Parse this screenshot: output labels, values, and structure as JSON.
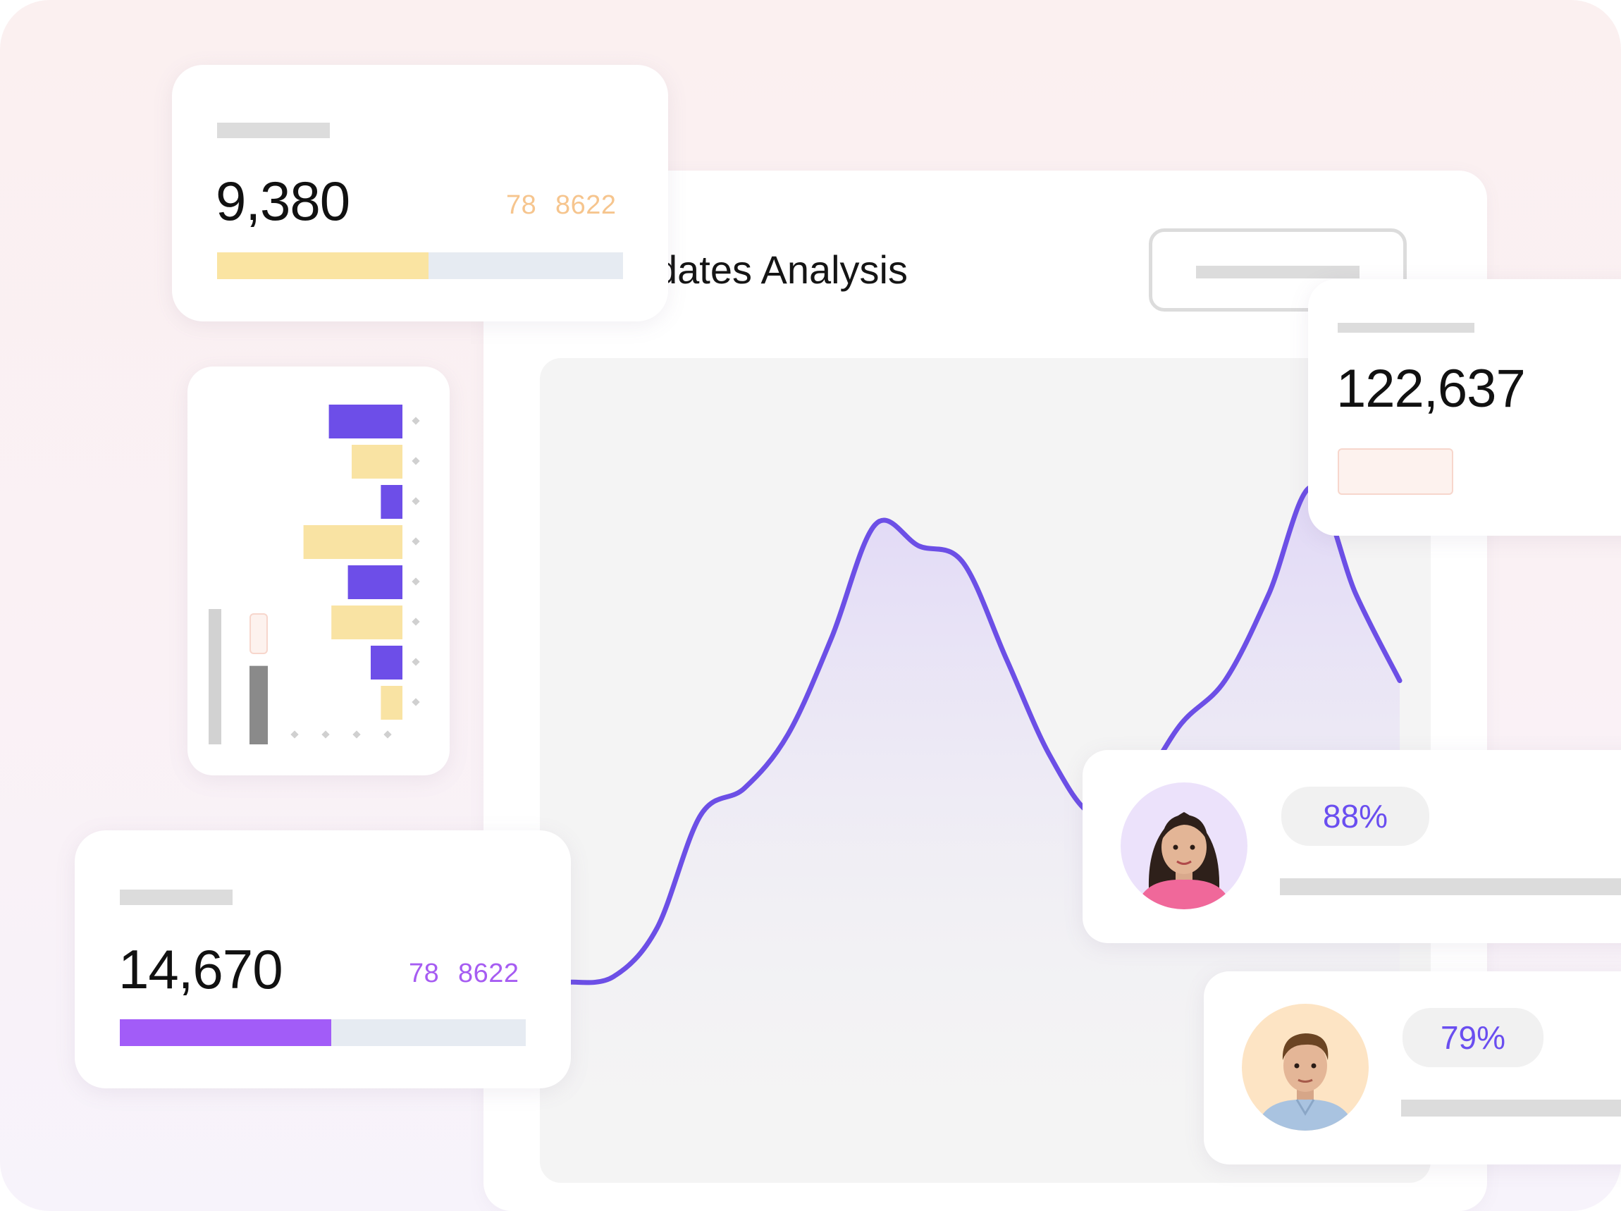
{
  "colors": {
    "accent_purple": "#6c4fe6",
    "bar_purple": "#6d4ee8",
    "bar_yellow": "#f9e3a3",
    "progress_yellow": "#fae4a2",
    "progress_violet": "#a25cf8",
    "sub_orange": "#f6c58e",
    "sub_violet": "#a65cf2",
    "track": "#e6ebf2",
    "badge_peach": "#fdf2ee"
  },
  "main_panel": {
    "title_visible": "dates Analysis"
  },
  "stat_cards": {
    "top": {
      "value": "9,380",
      "sub_a": "78",
      "sub_b": "8622",
      "progress": 0.52
    },
    "bottom": {
      "value": "14,670",
      "sub_a": "78",
      "sub_b": "8622",
      "progress": 0.52
    },
    "right": {
      "value": "122,637"
    }
  },
  "people": [
    {
      "percent": "88%",
      "avatar_icon": "woman-avatar-icon"
    },
    {
      "percent": "79%",
      "avatar_icon": "man-avatar-icon"
    }
  ],
  "bar_widget": {
    "bars": [
      {
        "value": 0.58,
        "color": "purple"
      },
      {
        "value": 0.4,
        "color": "yellow"
      },
      {
        "value": 0.17,
        "color": "purple"
      },
      {
        "value": 0.78,
        "color": "yellow"
      },
      {
        "value": 0.43,
        "color": "purple"
      },
      {
        "value": 0.56,
        "color": "yellow"
      },
      {
        "value": 0.25,
        "color": "purple"
      },
      {
        "value": 0.17,
        "color": "yellow"
      }
    ],
    "columns": [
      {
        "value": 1.0,
        "color": "light-gray"
      },
      {
        "value": 0.58,
        "color": "dark-gray"
      }
    ]
  },
  "chart_data": {
    "type": "area",
    "title": "",
    "xlabel": "",
    "ylabel": "",
    "grid": false,
    "series": [
      {
        "values": [
          0.04,
          0.05,
          0.14,
          0.35,
          0.4,
          0.5,
          0.68,
          0.89,
          0.85,
          0.82,
          0.64,
          0.46,
          0.35,
          0.4,
          0.52,
          0.6,
          0.76,
          0.96,
          0.76,
          0.6
        ]
      }
    ]
  }
}
